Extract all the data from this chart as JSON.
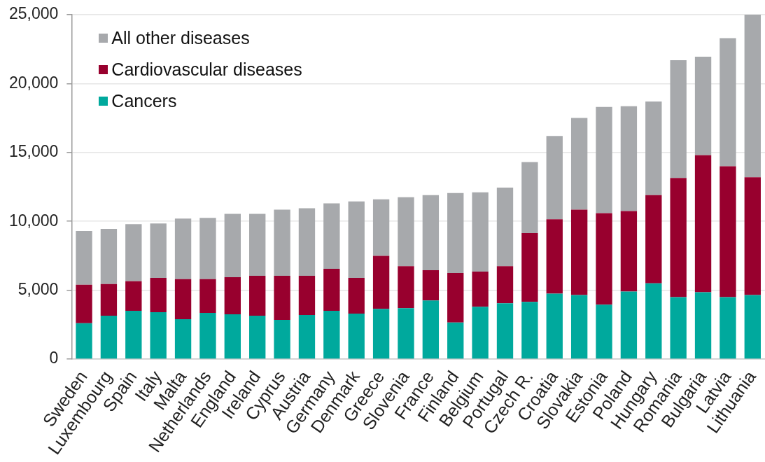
{
  "chart_data": {
    "type": "bar",
    "stacked": true,
    "categories": [
      "Sweden",
      "Luxembourg",
      "Spain",
      "Italy",
      "Malta",
      "Netherlands",
      "England",
      "Ireland",
      "Cyprus",
      "Austria",
      "Germany",
      "Denmark",
      "Greece",
      "Slovenia",
      "France",
      "Finland",
      "Belgium",
      "Portugal",
      "Czech R.",
      "Croatia",
      "Slovakia",
      "Estonia",
      "Poland",
      "Hungary",
      "Romania",
      "Bulgaria",
      "Latvia",
      "Lithuania"
    ],
    "series": [
      {
        "name": "Cancers",
        "color": "#00a99d",
        "values": [
          2600,
          3150,
          3500,
          3400,
          2900,
          3350,
          3250,
          3150,
          2850,
          3200,
          3500,
          3300,
          3650,
          3700,
          4250,
          2650,
          3800,
          4050,
          4150,
          4750,
          4650,
          3950,
          4900,
          5500,
          4500,
          4850,
          4500,
          4650
        ]
      },
      {
        "name": "Cardiovascular diseases",
        "color": "#98002e",
        "values": [
          2800,
          2300,
          2150,
          2500,
          2900,
          2450,
          2700,
          2900,
          3200,
          2850,
          3050,
          2600,
          3850,
          3050,
          2200,
          3600,
          2550,
          2700,
          5000,
          5400,
          6200,
          6650,
          5850,
          6400,
          8650,
          9950,
          9500,
          8550
        ]
      },
      {
        "name": "All other diseases",
        "color": "#a7a9ac",
        "values": [
          3900,
          4000,
          4150,
          3950,
          4400,
          4450,
          4600,
          4500,
          4800,
          4900,
          4750,
          5550,
          4100,
          5000,
          5450,
          5800,
          5750,
          5700,
          5150,
          6050,
          6650,
          7700,
          7600,
          6800,
          8550,
          7150,
          9300,
          11800
        ]
      }
    ],
    "ylim": [
      0,
      25000
    ],
    "yticks": [
      0,
      {
        "value": 5000,
        "label": "5,000"
      },
      {
        "value": 10000,
        "label": "10,000"
      },
      {
        "value": 15000,
        "label": "15,000"
      },
      {
        "value": 20000,
        "label": "20,000"
      },
      {
        "value": 25000,
        "label": "25,000"
      }
    ],
    "grid": "y",
    "legend": "top left"
  }
}
